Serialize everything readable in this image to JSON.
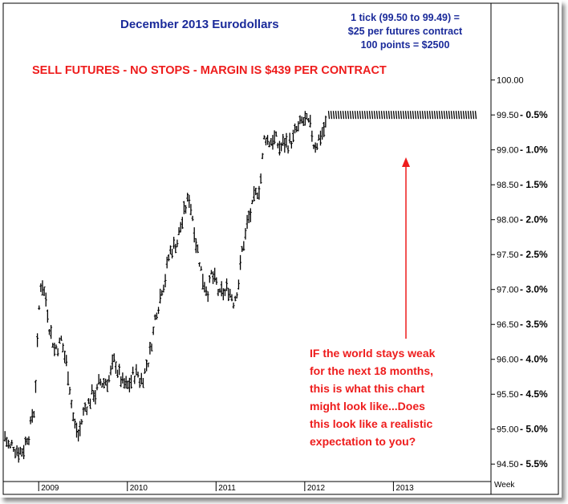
{
  "chart_data": {
    "type": "bar",
    "title": "December 2013 Eurodollars",
    "annotations": {
      "tick_info": [
        "1 tick (99.50 to 99.49) =",
        "$25 per futures contract",
        "100 points = $2500"
      ],
      "headline": "SELL FUTURES - NO STOPS - MARGIN IS $439 PER CONTRACT",
      "note": [
        "IF the world stays weak",
        "for the next 18 months,",
        "this is what this chart",
        "might look like...Does",
        "this look like a realistic",
        "expectation to you?"
      ]
    },
    "x_axis": {
      "label": "Week",
      "range": [
        2008.6,
        2014.1
      ],
      "ticks": [
        {
          "label": "2009",
          "value": 2009.0
        },
        {
          "label": "2010",
          "value": 2010.0
        },
        {
          "label": "2011",
          "value": 2011.0
        },
        {
          "label": "2012",
          "value": 2012.0
        },
        {
          "label": "2013",
          "value": 2013.0
        }
      ]
    },
    "y_axis": {
      "range": [
        94.25,
        101.1
      ],
      "ticks": [
        {
          "value": 100.0,
          "label": "100.00",
          "rate": ""
        },
        {
          "value": 99.5,
          "label": "99.50",
          "rate": "0.5%"
        },
        {
          "value": 99.0,
          "label": "99.00",
          "rate": "1.0%"
        },
        {
          "value": 98.5,
          "label": "98.50",
          "rate": "1.5%"
        },
        {
          "value": 98.0,
          "label": "98.00",
          "rate": "2.0%"
        },
        {
          "value": 97.5,
          "label": "97.50",
          "rate": "2.5%"
        },
        {
          "value": 97.0,
          "label": "97.00",
          "rate": "3.0%"
        },
        {
          "value": 96.5,
          "label": "96.50",
          "rate": "3.5%"
        },
        {
          "value": 96.0,
          "label": "96.00",
          "rate": "4.0%"
        },
        {
          "value": 95.5,
          "label": "95.50",
          "rate": "4.5%"
        },
        {
          "value": 95.0,
          "label": "95.00",
          "rate": "5.0%"
        },
        {
          "value": 94.5,
          "label": "94.50",
          "rate": "5.5%"
        }
      ]
    },
    "series": [
      {
        "points": [
          [
            2008.62,
            94.9
          ],
          [
            2008.68,
            94.7
          ],
          [
            2008.75,
            94.8
          ],
          [
            2008.82,
            94.75
          ],
          [
            2008.88,
            95.0
          ],
          [
            2008.95,
            95.3
          ],
          [
            2009.0,
            96.6
          ],
          [
            2009.03,
            97.2
          ],
          [
            2009.08,
            96.9
          ],
          [
            2009.12,
            96.6
          ],
          [
            2009.18,
            96.2
          ],
          [
            2009.25,
            96.3
          ],
          [
            2009.3,
            96.0
          ],
          [
            2009.35,
            95.7
          ],
          [
            2009.4,
            95.1
          ],
          [
            2009.45,
            94.9
          ],
          [
            2009.5,
            95.2
          ],
          [
            2009.55,
            95.4
          ],
          [
            2009.6,
            95.5
          ],
          [
            2009.7,
            95.6
          ],
          [
            2009.8,
            95.8
          ],
          [
            2009.88,
            95.9
          ],
          [
            2009.95,
            95.6
          ],
          [
            2010.0,
            95.5
          ],
          [
            2010.05,
            95.7
          ],
          [
            2010.1,
            95.8
          ],
          [
            2010.15,
            95.7
          ],
          [
            2010.2,
            95.9
          ],
          [
            2010.25,
            96.1
          ],
          [
            2010.3,
            96.5
          ],
          [
            2010.35,
            96.9
          ],
          [
            2010.4,
            97.2
          ],
          [
            2010.45,
            97.4
          ],
          [
            2010.5,
            97.6
          ],
          [
            2010.55,
            97.7
          ],
          [
            2010.6,
            97.9
          ],
          [
            2010.65,
            98.1
          ],
          [
            2010.7,
            98.3
          ],
          [
            2010.75,
            98.0
          ],
          [
            2010.8,
            97.6
          ],
          [
            2010.85,
            97.2
          ],
          [
            2010.9,
            97.1
          ],
          [
            2010.95,
            97.2
          ],
          [
            2011.0,
            97.0
          ],
          [
            2011.05,
            96.8
          ],
          [
            2011.1,
            96.9
          ],
          [
            2011.15,
            97.0
          ],
          [
            2011.2,
            96.9
          ],
          [
            2011.25,
            97.2
          ],
          [
            2011.3,
            97.6
          ],
          [
            2011.35,
            97.9
          ],
          [
            2011.4,
            98.1
          ],
          [
            2011.45,
            98.2
          ],
          [
            2011.5,
            98.6
          ],
          [
            2011.55,
            99.2
          ],
          [
            2011.6,
            99.15
          ],
          [
            2011.65,
            99.25
          ],
          [
            2011.7,
            99.0
          ],
          [
            2011.75,
            99.05
          ],
          [
            2011.8,
            99.1
          ],
          [
            2011.85,
            99.15
          ],
          [
            2011.9,
            99.2
          ],
          [
            2011.95,
            99.25
          ],
          [
            2012.0,
            99.35
          ],
          [
            2012.05,
            99.2
          ],
          [
            2012.1,
            99.05
          ],
          [
            2012.15,
            99.2
          ],
          [
            2012.2,
            99.3
          ],
          [
            2012.25,
            99.4
          ]
        ]
      },
      {
        "style": "hatched",
        "points": [
          [
            2012.25,
            99.5
          ],
          [
            2013.95,
            99.5
          ]
        ]
      }
    ],
    "grid": false
  }
}
